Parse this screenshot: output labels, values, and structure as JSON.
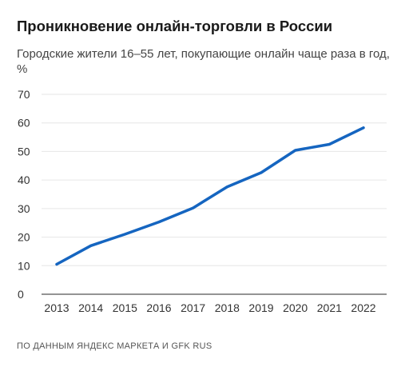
{
  "header": {
    "title": "Проникновение онлайн-торговли в России",
    "subtitle": "Городские жители 16–55 лет, покупающие онлайн чаще раза в год, %"
  },
  "footer": {
    "source": "ПО ДАННЫМ ЯНДЕКС МАРКЕТА И GFK RUS"
  },
  "chart_data": {
    "type": "line",
    "title": "Проникновение онлайн-торговли в России",
    "subtitle": "Городские жители 16–55 лет, покупающие онлайн чаще раза в год, %",
    "xlabel": "",
    "ylabel": "",
    "x": [
      "2013",
      "2014",
      "2015",
      "2016",
      "2017",
      "2018",
      "2019",
      "2020",
      "2021",
      "2022"
    ],
    "series": [
      {
        "values": [
          10.5,
          17,
          21,
          25.3,
          30.2,
          37.6,
          42.6,
          50.4,
          52.5,
          58.3
        ]
      }
    ],
    "yticks": [
      0,
      10,
      20,
      30,
      40,
      50,
      60,
      70
    ],
    "ylim": [
      0,
      70
    ],
    "grid": true,
    "colors": {
      "line": "#1565c0",
      "grid": "#e6e6e6",
      "axis": "#555555"
    }
  }
}
